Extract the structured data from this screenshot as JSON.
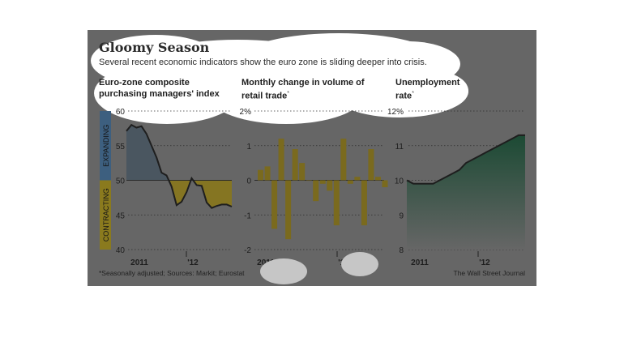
{
  "header": {
    "title": "Gloomy Season",
    "subtitle": "Several recent economic indicators show the euro zone is sliding deeper into crisis."
  },
  "panels": [
    {
      "title_line1": "Euro-zone composite",
      "title_line2": "purchasing managers' index",
      "note_mark": ""
    },
    {
      "title_line1": "Monthly change in volume of",
      "title_line2": "retail trade",
      "note_mark": "*"
    },
    {
      "title_line1": "Unemployment",
      "title_line2": "rate",
      "note_mark": "*"
    }
  ],
  "footer": {
    "footnote": "*Seasonally adjusted; Sources: Markit; Eurostat",
    "source": "The Wall Street Journal"
  },
  "colors": {
    "background": "#666666",
    "expanding_fill": "#4a5660",
    "contracting_fill": "#857522",
    "retail_bar": "#7a6a1e",
    "unemployment_fill_top": "#1c4a34",
    "line": "#1e1e1e",
    "band_blue": "#3d5f7f",
    "band_gold": "#8a7a1e"
  },
  "chart_data": [
    {
      "type": "area",
      "title": "Euro-zone composite purchasing managers' index",
      "x_tick_labels": [
        "2011",
        "'12"
      ],
      "ylim": [
        40,
        60
      ],
      "yticks": [
        "60",
        "55",
        "50",
        "45",
        "40"
      ],
      "baseline": 50,
      "band_labels": {
        "above": "EXPANDING",
        "below": "CONTRACTING"
      },
      "values": [
        57.1,
        58.0,
        57.6,
        57.8,
        56.7,
        55.0,
        53.3,
        51.1,
        50.7,
        49.1,
        46.4,
        46.9,
        48.3,
        50.3,
        49.3,
        49.2,
        46.8,
        46.0,
        46.3,
        46.5,
        46.5,
        46.2
      ]
    },
    {
      "type": "bar",
      "title": "Monthly change in volume of retail trade",
      "x_tick_labels": [
        "2011",
        "'12"
      ],
      "ylim": [
        -2,
        2
      ],
      "yticks": [
        "2%",
        "1",
        "0",
        "-1",
        "-2"
      ],
      "values": [
        0.3,
        0.4,
        -1.4,
        1.2,
        -1.7,
        0.9,
        0.5,
        0.0,
        -0.6,
        -0.1,
        -0.3,
        -1.3,
        1.2,
        -0.1,
        0.1,
        -1.3,
        0.9,
        0.1,
        -0.2
      ]
    },
    {
      "type": "area",
      "title": "Unemployment rate",
      "x_tick_labels": [
        "2011",
        "'12"
      ],
      "ylim": [
        8,
        12
      ],
      "yticks": [
        "12%",
        "11",
        "10",
        "9",
        "8"
      ],
      "values": [
        10.0,
        9.9,
        9.9,
        9.9,
        9.9,
        10.0,
        10.1,
        10.2,
        10.3,
        10.5,
        10.6,
        10.7,
        10.8,
        10.9,
        11.0,
        11.1,
        11.2,
        11.3,
        11.3
      ]
    }
  ]
}
